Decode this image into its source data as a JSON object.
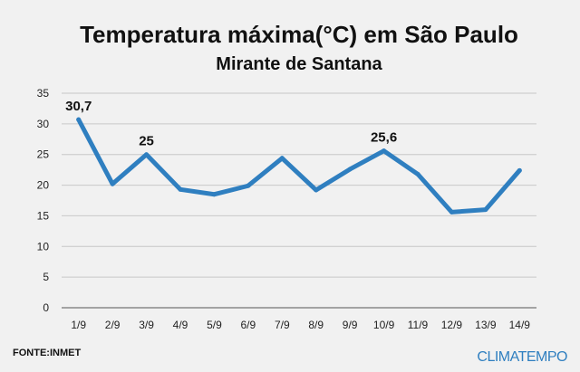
{
  "chart_data": {
    "type": "line",
    "title": "Temperatura máxima(°C) em São Paulo",
    "subtitle": "Mirante de Santana",
    "categories": [
      "1/9",
      "2/9",
      "3/9",
      "4/9",
      "5/9",
      "6/9",
      "7/9",
      "8/9",
      "9/9",
      "10/9",
      "11/9",
      "12/9",
      "13/9",
      "14/9"
    ],
    "series": [
      {
        "values": [
          30.7,
          20.2,
          25,
          19.3,
          18.5,
          19.9,
          24.4,
          19.2,
          22.6,
          25.6,
          21.8,
          15.6,
          16.0,
          22.4
        ]
      }
    ],
    "data_labels": [
      {
        "index": 0,
        "text": "30,7"
      },
      {
        "index": 2,
        "text": "25"
      },
      {
        "index": 9,
        "text": "25,6"
      }
    ],
    "ylim": [
      0,
      35
    ],
    "yticks": [
      0,
      5,
      10,
      15,
      20,
      25,
      30,
      35
    ],
    "grid": true,
    "line_color": "#2f7fc0"
  },
  "footer": {
    "source": "FONTE:INMET",
    "brand": "CLIMATEMPO"
  }
}
